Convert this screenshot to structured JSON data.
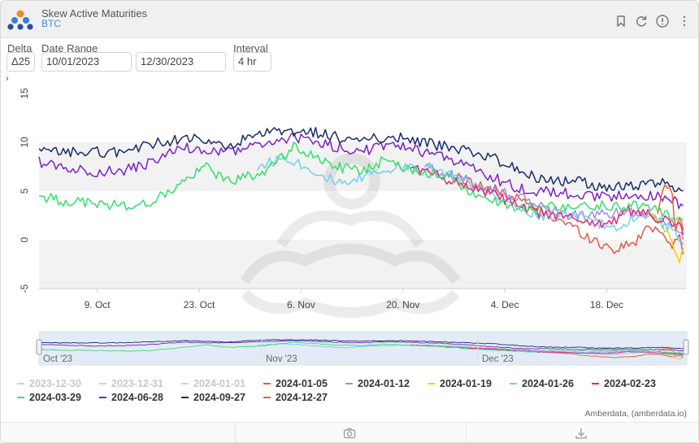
{
  "header": {
    "title": "Skew Active Maturities",
    "subtitle": "BTC"
  },
  "controls": {
    "delta_label": "Delta",
    "delta_value": "Δ25",
    "date_range_label": "Date Range",
    "start_date": "10/01/2023",
    "end_date": "12/30/2023",
    "interval_label": "Interval",
    "interval_value": "4 hr"
  },
  "colors": {
    "2023-12-30": "#c8c8c8",
    "2023-12-31": "#c8c8c8",
    "2024-01-01": "#c8c8c8",
    "2024-01-05": "#e05a4a",
    "2024-01-12": "#9b8ee0",
    "2024-01-19": "#f0d000",
    "2024-01-26": "#6fd0f0",
    "2024-02-23": "#e6257a",
    "2024-03-29": "#34e06a",
    "2024-06-28": "#7b22c6",
    "2024-09-27": "#1a2c6b",
    "2024-12-27": "#f06030"
  },
  "chart_data": {
    "type": "line",
    "title": "Skew Active Maturities",
    "ylabel": "",
    "xlabel": "",
    "ylim": [
      -5,
      15
    ],
    "yticks": [
      15,
      10,
      5,
      0,
      -5
    ],
    "xticks": [
      "9. Oct",
      "23. Oct",
      "6. Nov",
      "20. Nov",
      "4. Dec",
      "18. Dec"
    ],
    "navigator_labels": [
      "Oct '23",
      "Nov '23",
      "Dec '23"
    ],
    "x_range_days": [
      1,
      90
    ],
    "series": [
      {
        "name": "2023-12-30",
        "visible": false,
        "x": [],
        "y": []
      },
      {
        "name": "2023-12-31",
        "visible": false,
        "x": [],
        "y": []
      },
      {
        "name": "2024-01-01",
        "visible": false,
        "x": [],
        "y": []
      },
      {
        "name": "2024-01-05",
        "visible": true,
        "x": [
          58,
          62,
          66,
          70,
          74,
          77,
          80,
          83,
          85,
          87,
          88,
          89,
          89.5
        ],
        "y": [
          6.5,
          5.5,
          4.5,
          3.0,
          1.5,
          0,
          -1.0,
          -0.2,
          1.5,
          0.5,
          -0.5,
          0.5,
          -1.5
        ]
      },
      {
        "name": "2024-01-12",
        "visible": true,
        "x": [
          54,
          58,
          62,
          66,
          70,
          74,
          78,
          82,
          85,
          87,
          88,
          89,
          89.5
        ],
        "y": [
          7.5,
          6.5,
          5.5,
          4.5,
          3.5,
          2.5,
          2.5,
          3.0,
          2.5,
          2.0,
          1.5,
          1.0,
          0.0
        ]
      },
      {
        "name": "2024-01-19",
        "visible": true,
        "x": [
          84,
          86,
          87,
          88,
          88.5,
          89,
          89.5
        ],
        "y": [
          2.5,
          2.0,
          1.0,
          0.0,
          -1.5,
          -2.5,
          -1.0
        ]
      },
      {
        "name": "2024-01-26",
        "visible": true,
        "x": [
          31,
          35,
          39,
          43,
          47,
          51,
          55,
          58,
          62,
          66,
          70,
          74,
          77,
          80,
          83,
          86,
          88,
          89,
          89.5
        ],
        "y": [
          7.5,
          8.5,
          7.0,
          5.5,
          7.0,
          7.5,
          7.5,
          6.5,
          5.0,
          3.5,
          2.5,
          2.5,
          2.0,
          1.0,
          2.5,
          2.0,
          1.0,
          0.0,
          -0.5
        ]
      },
      {
        "name": "2024-02-23",
        "visible": true,
        "x": [
          52,
          56,
          60,
          64,
          68,
          72,
          76,
          79,
          82,
          85,
          87,
          88,
          89,
          89.5
        ],
        "y": [
          7.5,
          6.5,
          5.5,
          4.5,
          3.0,
          2.5,
          2.0,
          1.5,
          3.0,
          2.5,
          2.0,
          1.5,
          1.5,
          0.5
        ]
      },
      {
        "name": "2024-03-29",
        "visible": true,
        "x": [
          1,
          4,
          8,
          12,
          15,
          18,
          21,
          24,
          27,
          30,
          33,
          36,
          39,
          42,
          45,
          48,
          51,
          54,
          57,
          60,
          63,
          66,
          69,
          72,
          75,
          78,
          81,
          84,
          86,
          88,
          89.5
        ],
        "y": [
          4.5,
          4.0,
          3.8,
          3.5,
          3.5,
          4.5,
          6.0,
          7.5,
          6.0,
          6.5,
          7.5,
          9.5,
          8.5,
          7.5,
          7.0,
          8.0,
          7.5,
          7.0,
          6.5,
          5.0,
          4.0,
          3.5,
          3.0,
          3.5,
          3.5,
          3.5,
          3.5,
          3.5,
          3.0,
          2.5,
          2.0
        ]
      },
      {
        "name": "2024-06-28",
        "visible": true,
        "x": [
          1,
          4,
          8,
          12,
          15,
          18,
          21,
          24,
          27,
          30,
          33,
          36,
          39,
          42,
          45,
          48,
          51,
          54,
          57,
          60,
          63,
          66,
          69,
          72,
          75,
          78,
          81,
          84,
          86,
          88,
          89.5
        ],
        "y": [
          8.0,
          7.5,
          7.0,
          7.0,
          7.5,
          8.5,
          9.5,
          9.0,
          9.0,
          9.5,
          10.0,
          10.5,
          10.0,
          9.5,
          9.0,
          9.5,
          9.5,
          9.0,
          8.5,
          7.5,
          6.5,
          5.5,
          5.0,
          5.0,
          4.5,
          4.5,
          4.5,
          4.5,
          4.5,
          4.0,
          3.5
        ]
      },
      {
        "name": "2024-09-27",
        "visible": true,
        "x": [
          1,
          4,
          8,
          12,
          15,
          18,
          21,
          24,
          27,
          30,
          33,
          36,
          39,
          42,
          45,
          48,
          51,
          54,
          57,
          60,
          63,
          66,
          69,
          72,
          75,
          78,
          81,
          84,
          86,
          88,
          89.5
        ],
        "y": [
          9.0,
          9.0,
          9.0,
          9.0,
          9.5,
          10.0,
          10.5,
          10.0,
          9.5,
          10.5,
          11.0,
          11.0,
          11.0,
          10.5,
          10.0,
          10.5,
          10.5,
          10.0,
          9.5,
          9.0,
          8.5,
          7.5,
          6.5,
          6.0,
          6.0,
          5.5,
          5.5,
          5.5,
          6.0,
          5.5,
          5.0
        ]
      },
      {
        "name": "2024-12-27",
        "visible": true,
        "x": [
          86,
          87,
          88,
          88.5,
          89,
          89.5
        ],
        "y": [
          3.0,
          5.5,
          4.5,
          1.0,
          2.0,
          1.0
        ]
      }
    ]
  },
  "legend": {
    "items": [
      "2023-12-30",
      "2023-12-31",
      "2024-01-01",
      "2024-01-05",
      "2024-01-12",
      "2024-01-19",
      "2024-01-26",
      "2024-02-23",
      "2024-03-29",
      "2024-06-28",
      "2024-09-27",
      "2024-12-27"
    ]
  },
  "credit": "Amberdata, (amberdata.io)",
  "icons": {
    "logo": "amberdata-logo-icon",
    "bookmark": "bookmark-icon",
    "refresh": "refresh-icon",
    "info": "info-icon",
    "menu": "more-vertical-icon",
    "camera": "camera-icon",
    "download": "download-icon",
    "expand": "chevron-right-icon"
  }
}
